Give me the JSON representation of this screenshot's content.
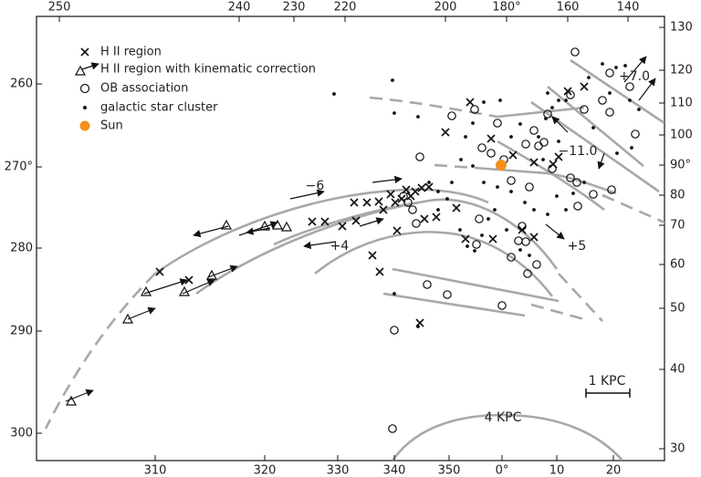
{
  "axes": {
    "bottom": [
      "310",
      "320",
      "330",
      "340",
      "350",
      "0°",
      "10",
      "20"
    ],
    "top": [
      "250",
      "240",
      "230",
      "220",
      "200",
      "180°",
      "160",
      "140"
    ],
    "left": [
      "260",
      "270°",
      "280",
      "290",
      "300"
    ],
    "right": [
      "130",
      "120",
      "110",
      "100",
      "90°",
      "80",
      "70",
      "60",
      "50",
      "40",
      "30"
    ]
  },
  "legend": [
    "H II region",
    "H II region with kinematic correction",
    "OB association",
    "galactic star cluster",
    "Sun"
  ],
  "annotations": [
    "−6",
    "+4",
    "+5",
    "−11.0",
    "+7.0",
    "1 KPC",
    "4 KPC"
  ]
}
